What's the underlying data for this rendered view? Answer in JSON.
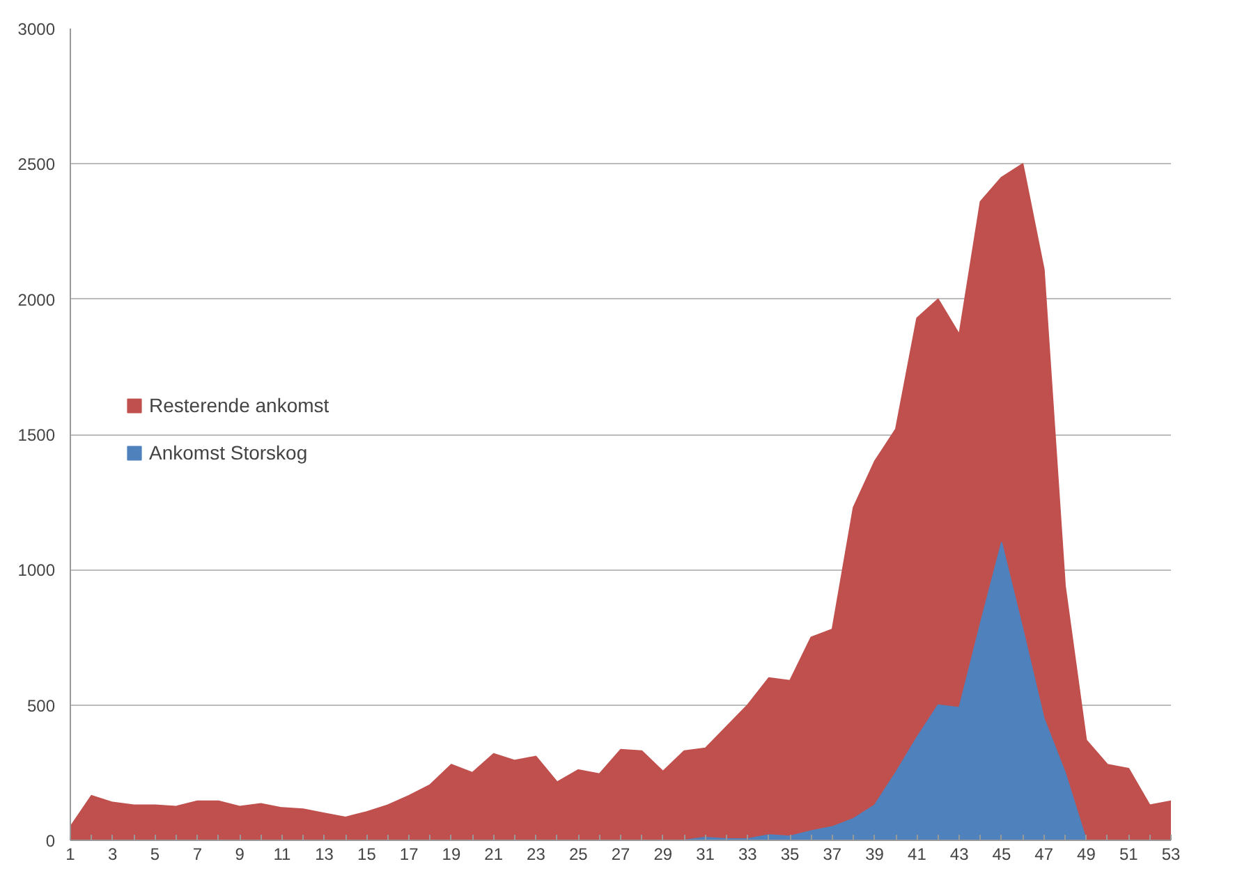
{
  "chart_data": {
    "type": "area",
    "x": [
      1,
      2,
      3,
      4,
      5,
      6,
      7,
      8,
      9,
      10,
      11,
      12,
      13,
      14,
      15,
      16,
      17,
      18,
      19,
      20,
      21,
      22,
      23,
      24,
      25,
      26,
      27,
      28,
      29,
      30,
      31,
      32,
      33,
      34,
      35,
      36,
      37,
      38,
      39,
      40,
      41,
      42,
      43,
      44,
      45,
      46,
      47,
      48,
      49,
      50,
      51,
      52,
      53
    ],
    "series": [
      {
        "name": "Resterende ankomst",
        "color": "#c0504d",
        "values": [
          50,
          165,
          140,
          130,
          130,
          125,
          145,
          145,
          125,
          135,
          120,
          115,
          100,
          85,
          105,
          130,
          165,
          205,
          280,
          250,
          320,
          295,
          310,
          215,
          260,
          245,
          335,
          330,
          255,
          330,
          340,
          420,
          500,
          600,
          590,
          750,
          780,
          1230,
          1400,
          1520,
          1930,
          2000,
          1870,
          2360,
          2450,
          2500,
          2110,
          940,
          370,
          280,
          265,
          130,
          145
        ]
      },
      {
        "name": "Ankomst Storskog",
        "color": "#4f81bd",
        "values": [
          0,
          0,
          0,
          0,
          0,
          0,
          0,
          0,
          0,
          0,
          0,
          0,
          0,
          0,
          0,
          0,
          0,
          0,
          0,
          0,
          0,
          0,
          0,
          0,
          0,
          0,
          0,
          0,
          0,
          0,
          10,
          5,
          5,
          20,
          15,
          35,
          50,
          80,
          130,
          250,
          380,
          500,
          490,
          800,
          1100,
          780,
          450,
          250,
          0,
          0,
          0,
          0,
          0
        ]
      }
    ],
    "xlim": [
      1,
      53
    ],
    "xticks": [
      1,
      {
        "value": 2,
        "label": null
      },
      3,
      {
        "value": 4,
        "label": null
      },
      5,
      {
        "value": 6,
        "label": null
      },
      7,
      {
        "value": 8,
        "label": null
      },
      9,
      {
        "value": 10,
        "label": null
      },
      11,
      {
        "value": 12,
        "label": null
      },
      13,
      {
        "value": 14,
        "label": null
      },
      15,
      {
        "value": 16,
        "label": null
      },
      17,
      {
        "value": 18,
        "label": null
      },
      19,
      {
        "value": 20,
        "label": null
      },
      21,
      {
        "value": 22,
        "label": null
      },
      23,
      {
        "value": 24,
        "label": null
      },
      25,
      {
        "value": 26,
        "label": null
      },
      27,
      {
        "value": 28,
        "label": null
      },
      29,
      {
        "value": 30,
        "label": null
      },
      31,
      {
        "value": 32,
        "label": null
      },
      33,
      {
        "value": 34,
        "label": null
      },
      35,
      {
        "value": 36,
        "label": null
      },
      37,
      {
        "value": 38,
        "label": null
      },
      39,
      {
        "value": 40,
        "label": null
      },
      41,
      {
        "value": 42,
        "label": null
      },
      43,
      {
        "value": 44,
        "label": null
      },
      45,
      {
        "value": 46,
        "label": null
      },
      47,
      {
        "value": 48,
        "label": null
      },
      49,
      {
        "value": 50,
        "label": null
      },
      51,
      {
        "value": 52,
        "label": null
      },
      53
    ],
    "ylim": [
      0,
      3000
    ],
    "yticks": [
      0,
      500,
      1000,
      1500,
      2000,
      2500,
      3000
    ],
    "grid": "y",
    "legend": "left"
  }
}
